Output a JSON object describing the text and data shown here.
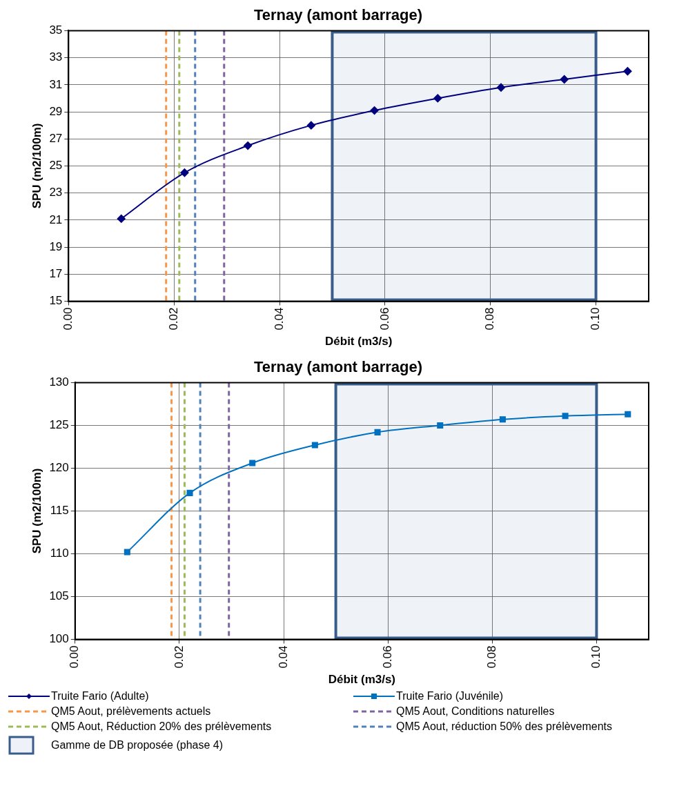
{
  "chart_data": [
    {
      "type": "line",
      "title": "Ternay (amont barrage)",
      "xlabel": "Débit (m3/s)",
      "ylabel": "SPU (m2/100m)",
      "x": [
        0.01,
        0.022,
        0.034,
        0.046,
        0.058,
        0.07,
        0.082,
        0.094,
        0.106
      ],
      "series": [
        {
          "name": "Truite Fario (Adulte)",
          "color": "#00007f",
          "values": [
            21.1,
            24.5,
            26.5,
            28.0,
            29.1,
            30.0,
            30.8,
            31.4,
            32.0
          ]
        }
      ],
      "marker": "diamond",
      "line_style": "solid",
      "xlim": [
        0,
        0.11
      ],
      "xticks": [
        {
          "value": 0,
          "label": "0.00"
        },
        {
          "value": 0.02,
          "label": "0.02"
        },
        {
          "value": 0.04,
          "label": "0.04"
        },
        {
          "value": 0.06,
          "label": "0.06"
        },
        {
          "value": 0.08,
          "label": "0.08"
        },
        {
          "value": 0.1,
          "label": "0.10"
        }
      ],
      "ylim": [
        15,
        35
      ],
      "yticks": [
        15,
        17,
        19,
        21,
        23,
        25,
        27,
        29,
        31,
        33,
        35
      ],
      "grid": true,
      "legend": "bottom",
      "ref_lines": [
        {
          "axis": "x",
          "value": 0.0185,
          "color": "#f79646",
          "line_style": "dashed"
        },
        {
          "axis": "x",
          "value": 0.0295,
          "color": "#8064a2",
          "line_style": "dashed"
        },
        {
          "axis": "x",
          "value": 0.021,
          "color": "#9bbb59",
          "line_style": "dashed"
        },
        {
          "axis": "x",
          "value": 0.024,
          "color": "#4f81bd",
          "line_style": "dashed"
        }
      ],
      "bands": [
        {
          "axis": "x",
          "from": 0.05,
          "to": 0.1,
          "color": "#385d8a"
        }
      ]
    },
    {
      "type": "line",
      "title": "Ternay (amont barrage)",
      "xlabel": "Débit (m3/s)",
      "ylabel": "SPU (m2/100m)",
      "x": [
        0.01,
        0.022,
        0.034,
        0.046,
        0.058,
        0.07,
        0.082,
        0.094,
        0.106
      ],
      "series": [
        {
          "name": "Truite Fario (Juvénile)",
          "color": "#0070c0",
          "values": [
            110.2,
            117.1,
            120.6,
            122.7,
            124.2,
            125.0,
            125.7,
            126.1,
            126.3
          ]
        }
      ],
      "marker": "square",
      "line_style": "solid",
      "xlim": [
        0,
        0.11
      ],
      "xticks": [
        {
          "value": 0,
          "label": "0.00"
        },
        {
          "value": 0.02,
          "label": "0.02"
        },
        {
          "value": 0.04,
          "label": "0.04"
        },
        {
          "value": 0.06,
          "label": "0.06"
        },
        {
          "value": 0.08,
          "label": "0.08"
        },
        {
          "value": 0.1,
          "label": "0.10"
        }
      ],
      "ylim": [
        100,
        130
      ],
      "yticks": [
        100,
        105,
        110,
        115,
        120,
        125,
        130
      ],
      "grid": true,
      "legend": "bottom",
      "ref_lines": [
        {
          "axis": "x",
          "value": 0.0185,
          "label": "QM5 Aout, prélèvements actuels",
          "color": "#f79646",
          "line_style": "dashed"
        },
        {
          "axis": "x",
          "value": 0.0295,
          "label": "QM5 Aout, Conditions naturelles",
          "color": "#8064a2",
          "line_style": "dashed"
        },
        {
          "axis": "x",
          "value": 0.021,
          "label": "QM5 Aout, Réduction 20% des prélèvements",
          "color": "#9bbb59",
          "line_style": "dashed"
        },
        {
          "axis": "x",
          "value": 0.024,
          "label": "QM5 Aout, réduction 50% des prélèvements",
          "color": "#4f81bd",
          "line_style": "dashed"
        }
      ],
      "bands": [
        {
          "axis": "x",
          "from": 0.05,
          "to": 0.1,
          "label": "Gamme de DB proposée (phase 4)",
          "color": "#385d8a"
        }
      ]
    }
  ]
}
